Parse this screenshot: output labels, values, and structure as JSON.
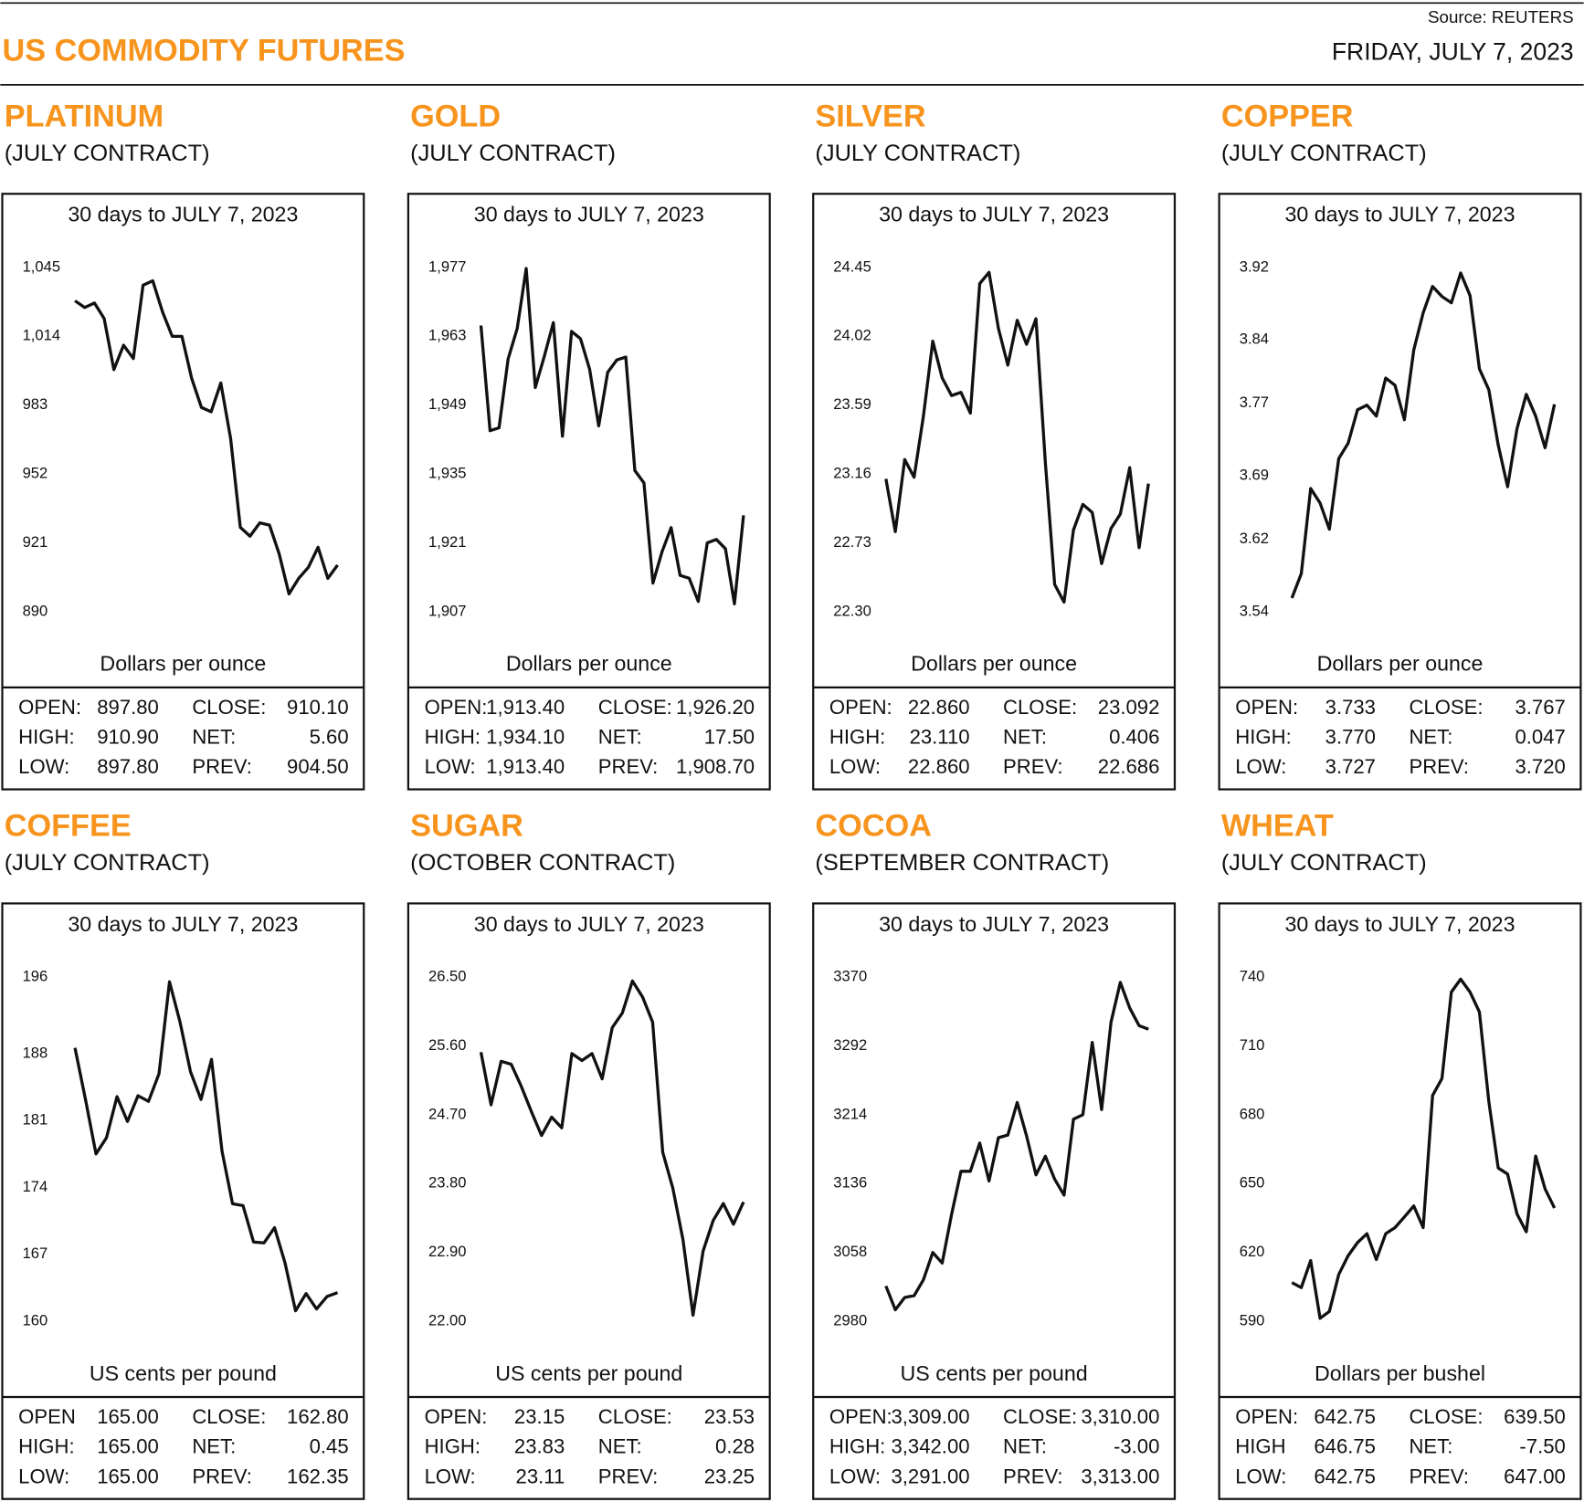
{
  "header": {
    "source": "Source: REUTERS",
    "title": "US COMMODITY FUTURES",
    "date": "FRIDAY, JULY 7, 2023"
  },
  "chart_data": [
    {
      "type": "line",
      "title": "PLATINUM",
      "subtitle": "(JULY CONTRACT)",
      "caption": "30 days to JULY 7, 2023",
      "y_label": "Dollars per ounce",
      "color": "#111111",
      "ylim": [
        890,
        1045
      ],
      "yticks": [
        {
          "value": 1045,
          "label": "1,045"
        },
        {
          "value": 1014,
          "label": "1,014"
        },
        983,
        952,
        921,
        890
      ],
      "values": [
        1030,
        1027,
        1029,
        1022,
        999,
        1010,
        1004,
        1037,
        1039,
        1025,
        1014,
        1014,
        995,
        982,
        980,
        993,
        968,
        928,
        924,
        930,
        929,
        916,
        898,
        905,
        910,
        919,
        905,
        911
      ],
      "stats": [
        [
          "OPEN:",
          "897.80",
          "CLOSE:",
          "910.10"
        ],
        [
          "HIGH:",
          "910.90",
          "NET:",
          "5.60"
        ],
        [
          "LOW:",
          "897.80",
          "PREV:",
          "904.50"
        ]
      ]
    },
    {
      "type": "line",
      "title": "GOLD",
      "subtitle": "(JULY CONTRACT)",
      "caption": "30 days to JULY 7, 2023",
      "y_label": "Dollars per ounce",
      "color": "#111111",
      "ylim": [
        1907,
        1977
      ],
      "yticks": [
        {
          "value": 1977,
          "label": "1,977"
        },
        {
          "value": 1963,
          "label": "1,963"
        },
        {
          "value": 1949,
          "label": "1,949"
        },
        {
          "value": 1935,
          "label": "1,935"
        },
        {
          "value": 1921,
          "label": "1,921"
        },
        {
          "value": 1907,
          "label": "1,907"
        }
      ],
      "values": [
        1965.2,
        1943.8,
        1944.4,
        1958.4,
        1964.6,
        1976.8,
        1952.6,
        1959.0,
        1965.8,
        1942.7,
        1964.0,
        1962.5,
        1956.3,
        1944.8,
        1955.7,
        1958.2,
        1958.8,
        1935.7,
        1933.2,
        1912.8,
        1919.2,
        1924.1,
        1914.4,
        1913.8,
        1909.1,
        1921.0,
        1921.7,
        1919.8,
        1908.6,
        1926.6
      ],
      "stats": [
        [
          "OPEN:",
          "1,913.40",
          "CLOSE:",
          "1,926.20"
        ],
        [
          "HIGH:",
          "1,934.10",
          "NET:",
          "17.50"
        ],
        [
          "LOW:",
          "1,913.40",
          "PREV:",
          "1,908.70"
        ]
      ]
    },
    {
      "type": "line",
      "title": "SILVER",
      "subtitle": "(JULY CONTRACT)",
      "caption": "30 days to JULY 7, 2023",
      "y_label": "Dollars per ounce",
      "color": "#111111",
      "ylim": [
        22.3,
        24.45
      ],
      "yticks": [
        24.45,
        24.02,
        23.59,
        23.16,
        22.73,
        {
          "value": 22.3,
          "label": "22.30"
        }
      ],
      "values": [
        23.13,
        22.8,
        23.25,
        23.14,
        23.52,
        23.99,
        23.76,
        23.65,
        23.67,
        23.54,
        24.35,
        24.42,
        24.07,
        23.84,
        24.12,
        23.97,
        24.13,
        23.23,
        22.47,
        22.36,
        22.81,
        22.97,
        22.92,
        22.6,
        22.82,
        22.91,
        23.2,
        22.7,
        23.1
      ],
      "stats": [
        [
          "OPEN:",
          "22.860",
          "CLOSE:",
          "23.092"
        ],
        [
          "HIGH:",
          "23.110",
          "NET:",
          "0.406"
        ],
        [
          "LOW:",
          "22.860",
          "PREV:",
          "22.686"
        ]
      ]
    },
    {
      "type": "line",
      "title": "COPPER",
      "subtitle": "(JULY CONTRACT)",
      "caption": "30 days to JULY 7, 2023",
      "y_label": "Dollars per ounce",
      "color": "#111111",
      "ylim": [
        3.54,
        3.92
      ],
      "yticks": [
        3.92,
        3.84,
        3.77,
        3.69,
        3.62,
        3.54
      ],
      "values": [
        3.555,
        3.582,
        3.676,
        3.66,
        3.631,
        3.709,
        3.726,
        3.763,
        3.768,
        3.756,
        3.798,
        3.79,
        3.752,
        3.829,
        3.87,
        3.899,
        3.888,
        3.881,
        3.914,
        3.889,
        3.808,
        3.785,
        3.724,
        3.678,
        3.742,
        3.78,
        3.756,
        3.721,
        3.769
      ],
      "stats": [
        [
          "OPEN:",
          "3.733",
          "CLOSE:",
          "3.767"
        ],
        [
          "HIGH:",
          "3.770",
          "NET:",
          "0.047"
        ],
        [
          "LOW:",
          "3.727",
          "PREV:",
          "3.720"
        ]
      ]
    },
    {
      "type": "line",
      "title": "COFFEE",
      "subtitle": "(JULY CONTRACT)",
      "caption": "30 days to JULY 7, 2023",
      "y_label": "US cents per pound",
      "color": "#111111",
      "ylim": [
        160,
        196
      ],
      "yticks": [
        196,
        188,
        181,
        174,
        167,
        160
      ],
      "values": [
        188.6,
        183.2,
        177.5,
        179.2,
        183.5,
        180.9,
        183.6,
        183.0,
        185.9,
        195.5,
        191.3,
        186.1,
        183.2,
        187.4,
        177.8,
        172.3,
        172.1,
        168.3,
        168.2,
        169.8,
        166.1,
        161.1,
        162.9,
        161.3,
        162.6,
        163.0
      ],
      "stats": [
        [
          "OPEN",
          "165.00",
          "CLOSE:",
          "162.80"
        ],
        [
          "HIGH:",
          "165.00",
          "NET:",
          "0.45"
        ],
        [
          "LOW:",
          "165.00",
          "PREV:",
          "162.35"
        ]
      ]
    },
    {
      "type": "line",
      "title": "SUGAR",
      "subtitle": "(OCTOBER CONTRACT)",
      "caption": "30 days to JULY 7, 2023",
      "y_label": "US cents per pound",
      "color": "#111111",
      "ylim": [
        22,
        26.5
      ],
      "yticks": [
        {
          "value": 26.5,
          "label": "26.50"
        },
        {
          "value": 25.6,
          "label": "25.60"
        },
        {
          "value": 24.7,
          "label": "24.70"
        },
        {
          "value": 23.8,
          "label": "23.80"
        },
        {
          "value": 22.9,
          "label": "22.90"
        },
        {
          "value": 22,
          "label": "22.00"
        }
      ],
      "values": [
        25.52,
        24.83,
        25.4,
        25.36,
        25.07,
        24.74,
        24.43,
        24.67,
        24.53,
        25.5,
        25.41,
        25.5,
        25.17,
        25.84,
        26.03,
        26.45,
        26.24,
        25.91,
        24.21,
        23.74,
        23.07,
        22.08,
        22.92,
        23.32,
        23.54,
        23.27,
        23.56
      ],
      "stats": [
        [
          "OPEN:",
          "23.15",
          "CLOSE:",
          "23.53"
        ],
        [
          "HIGH:",
          "23.83",
          "NET:",
          "0.28"
        ],
        [
          "LOW:",
          "23.11",
          "PREV:",
          "23.25"
        ]
      ]
    },
    {
      "type": "line",
      "title": "COCOA",
      "subtitle": "(SEPTEMBER CONTRACT)",
      "caption": "30 days to JULY 7, 2023",
      "y_label": "US cents per pound",
      "color": "#111111",
      "ylim": [
        2980,
        3370
      ],
      "yticks": [
        3370,
        3292,
        3214,
        3136,
        3058,
        2980
      ],
      "values": [
        3020,
        2993,
        3007,
        3009,
        3027,
        3058,
        3046,
        3101,
        3150,
        3150,
        3182,
        3139,
        3188,
        3191,
        3228,
        3190,
        3146,
        3167,
        3141,
        3123,
        3209,
        3214,
        3296,
        3220,
        3319,
        3364,
        3335,
        3315,
        3311
      ],
      "stats": [
        [
          "OPEN:",
          "3,309.00",
          "CLOSE:",
          "3,310.00"
        ],
        [
          "HIGH:",
          "3,342.00",
          "NET:",
          "-3.00"
        ],
        [
          "LOW:",
          "3,291.00",
          "PREV:",
          "3,313.00"
        ]
      ]
    },
    {
      "type": "line",
      "title": "WHEAT",
      "subtitle": "(JULY CONTRACT)",
      "caption": "30 days to JULY 7, 2023",
      "y_label": "Dollars per bushel",
      "color": "#111111",
      "ylim": [
        590,
        740
      ],
      "yticks": [
        740,
        710,
        680,
        650,
        620,
        590
      ],
      "values": [
        606.9,
        604.7,
        616.5,
        591.3,
        594.3,
        610.4,
        618.6,
        624.3,
        628.2,
        616.9,
        628.2,
        630.8,
        635.5,
        640.3,
        630.8,
        688.4,
        695.8,
        733.5,
        739.1,
        733.5,
        724.8,
        685.8,
        656.8,
        654.2,
        636.8,
        629.0,
        662.0,
        647.7,
        639.4
      ],
      "stats": [
        [
          "OPEN:",
          "642.75",
          "CLOSE:",
          "639.50"
        ],
        [
          "HIGH",
          "646.75",
          "NET:",
          "-7.50"
        ],
        [
          "LOW:",
          "642.75",
          "PREV:",
          "647.00"
        ]
      ]
    }
  ]
}
